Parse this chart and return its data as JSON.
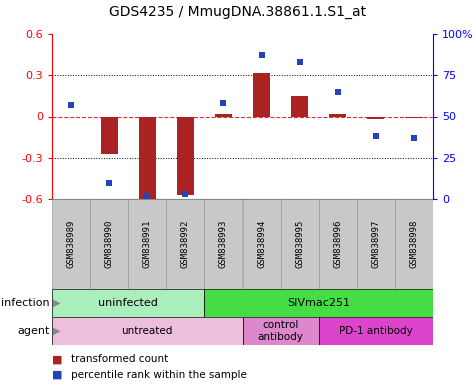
{
  "title": "GDS4235 / MmugDNA.38861.1.S1_at",
  "samples": [
    "GSM838989",
    "GSM838990",
    "GSM838991",
    "GSM838992",
    "GSM838993",
    "GSM838994",
    "GSM838995",
    "GSM838996",
    "GSM838997",
    "GSM838998"
  ],
  "bar_values": [
    0.0,
    -0.27,
    -0.6,
    -0.57,
    0.02,
    0.32,
    0.15,
    0.02,
    -0.02,
    -0.01
  ],
  "scatter_values": [
    57,
    10,
    2,
    3,
    58,
    87,
    83,
    65,
    38,
    37
  ],
  "ylim_left": [
    -0.6,
    0.6
  ],
  "ylim_right": [
    0,
    100
  ],
  "yticks_left": [
    -0.6,
    -0.3,
    0.0,
    0.3,
    0.6
  ],
  "yticks_right": [
    0,
    25,
    50,
    75,
    100
  ],
  "yticklabels_right": [
    "0",
    "25",
    "50",
    "75",
    "100%"
  ],
  "bar_color": "#AA2222",
  "scatter_color": "#2244BB",
  "zero_line_color": "#CC3333",
  "grid_color": "#000000",
  "legend_bar_label": "transformed count",
  "legend_scatter_label": "percentile rank within the sample",
  "infection_label": "infection",
  "agent_label": "agent",
  "sample_bg_color": "#C8C8C8",
  "sample_border_color": "#999999",
  "inf_uninfected_color": "#AAEEBB",
  "inf_siv_color": "#44DD44",
  "agent_untreated_color": "#EEBEDD",
  "agent_control_color": "#DD88CC",
  "agent_pd1_color": "#DD44CC",
  "inf_boundaries": [
    [
      0,
      4,
      "uninfected"
    ],
    [
      4,
      10,
      "SIVmac251"
    ]
  ],
  "agent_boundaries": [
    [
      0,
      5,
      "untreated"
    ],
    [
      5,
      7,
      "control\nantibody"
    ],
    [
      7,
      10,
      "PD-1 antibody"
    ]
  ]
}
